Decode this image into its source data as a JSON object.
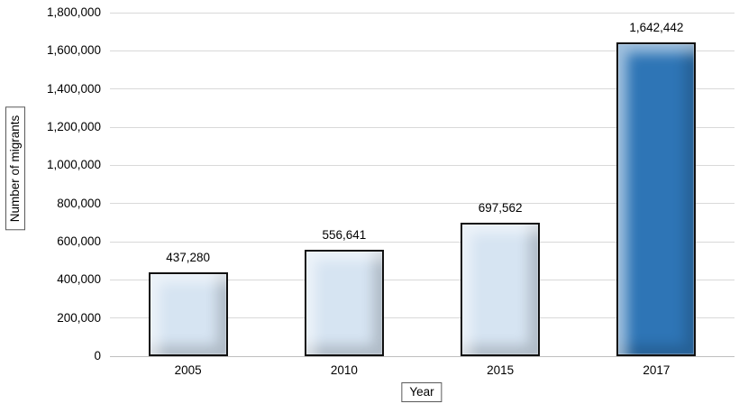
{
  "chart_data": {
    "type": "bar",
    "title": "",
    "categories": [
      "2005",
      "2010",
      "2015",
      "2017"
    ],
    "values": [
      437280,
      556641,
      697562,
      1642442
    ],
    "data_labels": [
      "437,280",
      "556,641",
      "697,562",
      "1,642,442"
    ],
    "xlabel": "Year",
    "ylabel": "Number of migrants",
    "ylim": [
      0,
      1800000
    ],
    "ytick_step": 200000,
    "ytick_labels": [
      "0",
      "200,000",
      "400,000",
      "600,000",
      "800,000",
      "1,000,000",
      "1,200,000",
      "1,400,000",
      "1,600,000",
      "1,800,000"
    ],
    "grid": true,
    "legend": false,
    "bar_colors": [
      "#d6e4f2",
      "#d6e4f2",
      "#d6e4f2",
      "#2e75b6"
    ],
    "bar_border_color": "#111111",
    "gridline_color": "#d9d9d9",
    "axis_line_color": "#bfbfbf"
  }
}
